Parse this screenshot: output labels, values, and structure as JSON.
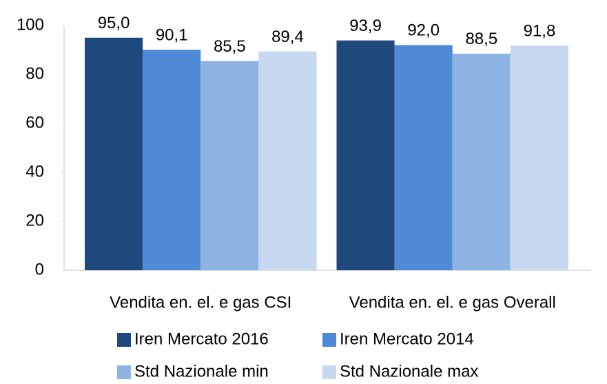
{
  "chart_data": {
    "type": "bar",
    "categories": [
      "Vendita en. el. e gas CSI",
      "Vendita en. el. e gas Overall"
    ],
    "series": [
      {
        "name": "Iren Mercato 2016",
        "color": "#1f497d",
        "values": [
          95.0,
          93.9
        ],
        "value_labels": [
          "95,0",
          "93,9"
        ]
      },
      {
        "name": "Iren Mercato 2014",
        "color": "#4f8ad6",
        "values": [
          90.1,
          92.0
        ],
        "value_labels": [
          "90,1",
          "92,0"
        ]
      },
      {
        "name": "Std Nazionale min",
        "color": "#8eb4e3",
        "values": [
          85.5,
          88.5
        ],
        "value_labels": [
          "85,5",
          "88,5"
        ]
      },
      {
        "name": "Std Nazionale max",
        "color": "#c6d9f1",
        "values": [
          89.4,
          91.8
        ],
        "value_labels": [
          "89,4",
          "91,8"
        ]
      }
    ],
    "ylim": [
      0,
      100
    ],
    "yticks": [
      0,
      20,
      40,
      60,
      80,
      100
    ],
    "grid": false,
    "legend": "bottom"
  }
}
